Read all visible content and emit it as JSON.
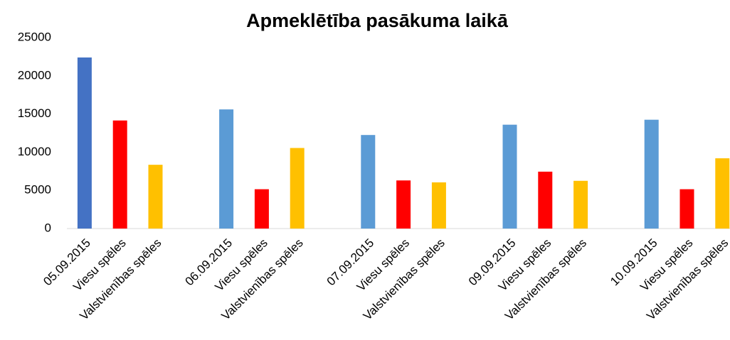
{
  "chart_data": {
    "type": "bar",
    "title": "Apmeklētība pasākuma laikā",
    "categories": [
      "05.09.2015",
      "Viesu spēles",
      "Valstvienības spēles",
      null,
      "06.09.2015",
      "Viesu spēles",
      "Valstvienības spēles",
      null,
      "07.09.2015",
      "Viesu spēles",
      "Valstvienības spēles",
      null,
      "09.09.2015",
      "Viesu spēles",
      "Valstvienības spēles",
      null,
      "10.09.2015",
      "Viesu spēles",
      "Valstvienības spēles"
    ],
    "values": [
      22400,
      14150,
      8350,
      null,
      15600,
      5150,
      10550,
      null,
      12250,
      6300,
      6050,
      null,
      13600,
      7450,
      6250,
      null,
      14250,
      5150,
      9200
    ],
    "colors": [
      "#4472c4",
      "#ff0000",
      "#ffc000",
      null,
      "#5b9bd5",
      "#ff0000",
      "#ffc000",
      null,
      "#5b9bd5",
      "#ff0000",
      "#ffc000",
      null,
      "#5b9bd5",
      "#ff0000",
      "#ffc000",
      null,
      "#5b9bd5",
      "#ff0000",
      "#ffc000"
    ],
    "ylim": [
      0,
      25000
    ],
    "yticks": [
      0,
      5000,
      10000,
      15000,
      20000,
      25000
    ],
    "grid": false
  }
}
